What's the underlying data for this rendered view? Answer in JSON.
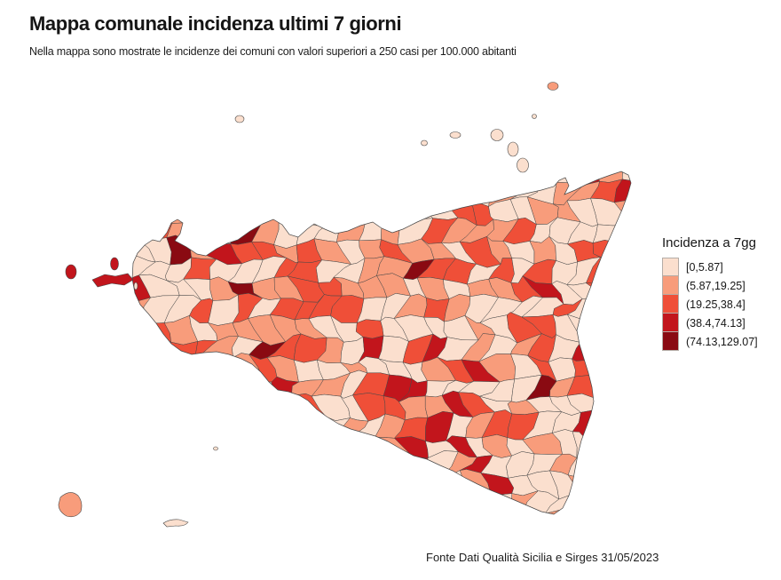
{
  "page": {
    "title": "Mappa comunale incidenza ultimi 7 giorni",
    "subtitle": "Nella mappa sono mostrate le incidenze dei comuni con valori superiori a 250 casi per 100.000 abitanti",
    "source": "Fonte Dati Qualità Sicilia e Sirges 31/05/2023"
  },
  "legend": {
    "title": "Incidenza a 7gg",
    "incidence_breaks": [
      0,
      5.87,
      19.25,
      38.4,
      74.13,
      129.07
    ],
    "classes": [
      {
        "label": "[0,5.87]",
        "color": "#fbdfce"
      },
      {
        "label": "(5.87,19.25]",
        "color": "#f89c7b"
      },
      {
        "label": "(19.25,38.4]",
        "color": "#ef4f38"
      },
      {
        "label": "(38.4,74.13]",
        "color": "#c2151c"
      },
      {
        "label": "(74.13,129.07]",
        "color": "#8a0a12"
      }
    ]
  },
  "map": {
    "border_color": "#474747",
    "sea_color": "#ffffff",
    "class_weights": [
      0.42,
      0.26,
      0.22,
      0.06,
      0.04
    ]
  }
}
